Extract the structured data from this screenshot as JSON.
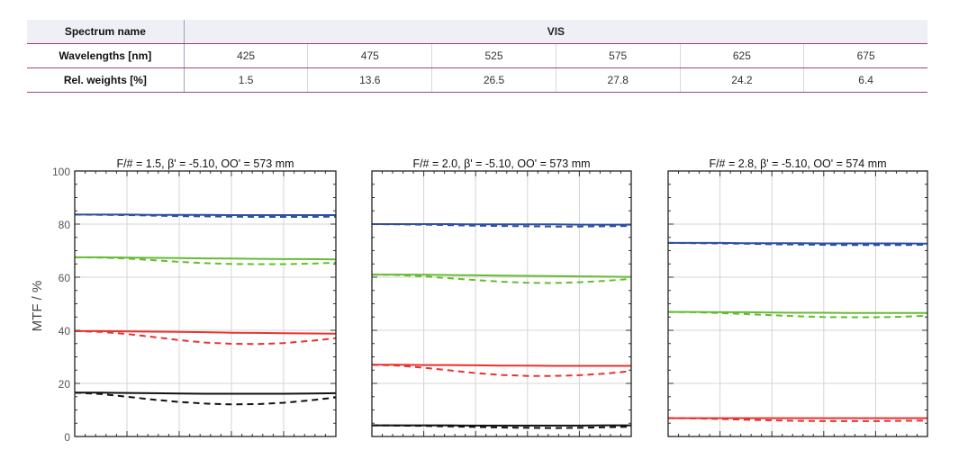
{
  "table": {
    "spectrum_label": "Spectrum name",
    "spectrum_value": "VIS",
    "wavelength_label": "Wavelengths [nm]",
    "weights_label": "Rel. weights [%]",
    "wavelengths": [
      "425",
      "475",
      "525",
      "575",
      "625",
      "675"
    ],
    "weights": [
      "1.5",
      "13.6",
      "26.5",
      "27.8",
      "24.2",
      "6.4"
    ]
  },
  "colors": {
    "blue": "#2e4fa3",
    "green": "#66bb33",
    "red": "#e8322e",
    "black": "#111111",
    "grid": "#d4d4d4",
    "table_rule": "#a0457d"
  },
  "chart_data": [
    {
      "type": "line",
      "title": "F/# = 1.5, β' = -5.10, OO' = 573 mm",
      "ylabel": "MTF / %",
      "ylim": [
        0,
        100
      ],
      "yticks": [
        "100",
        "80",
        "60",
        "40",
        "20",
        "0"
      ],
      "x": [
        0,
        0.1,
        0.2,
        0.3,
        0.4,
        0.5,
        0.6,
        0.7,
        0.8,
        0.9,
        1.0
      ],
      "series": [
        {
          "color": "blue",
          "style": "solid",
          "values": [
            83.6,
            83.6,
            83.6,
            83.5,
            83.5,
            83.5,
            83.4,
            83.4,
            83.4,
            83.4,
            83.4
          ]
        },
        {
          "color": "blue",
          "style": "dashed",
          "values": [
            83.6,
            83.5,
            83.4,
            83.2,
            83.0,
            82.9,
            82.8,
            82.7,
            82.7,
            82.7,
            82.8
          ]
        },
        {
          "color": "green",
          "style": "solid",
          "values": [
            67.5,
            67.5,
            67.4,
            67.3,
            67.2,
            67.1,
            67.0,
            66.9,
            66.8,
            66.8,
            66.7
          ]
        },
        {
          "color": "green",
          "style": "dashed",
          "values": [
            67.5,
            67.4,
            67.0,
            66.4,
            65.8,
            65.3,
            65.0,
            64.9,
            64.9,
            65.1,
            65.5
          ]
        },
        {
          "color": "red",
          "style": "solid",
          "values": [
            39.7,
            39.7,
            39.6,
            39.5,
            39.4,
            39.3,
            39.1,
            39.0,
            38.9,
            38.8,
            38.7
          ]
        },
        {
          "color": "red",
          "style": "dashed",
          "values": [
            39.7,
            39.4,
            38.6,
            37.5,
            36.3,
            35.4,
            34.9,
            34.8,
            35.2,
            36.0,
            37.0
          ]
        },
        {
          "color": "black",
          "style": "solid",
          "values": [
            16.5,
            16.5,
            16.4,
            16.3,
            16.2,
            16.1,
            16.1,
            16.1,
            16.1,
            16.2,
            16.3
          ]
        },
        {
          "color": "black",
          "style": "dashed",
          "values": [
            16.5,
            16.0,
            15.0,
            13.9,
            13.0,
            12.4,
            12.1,
            12.2,
            12.7,
            13.6,
            14.7
          ]
        }
      ]
    },
    {
      "type": "line",
      "title": "F/# = 2.0, β' = -5.10, OO' = 573 mm",
      "ylim": [
        0,
        100
      ],
      "x": [
        0,
        0.1,
        0.2,
        0.3,
        0.4,
        0.5,
        0.6,
        0.7,
        0.8,
        0.9,
        1.0
      ],
      "series": [
        {
          "color": "blue",
          "style": "solid",
          "values": [
            80.0,
            80.0,
            80.0,
            80.0,
            79.9,
            79.9,
            79.9,
            79.9,
            79.8,
            79.8,
            79.8
          ]
        },
        {
          "color": "blue",
          "style": "dashed",
          "values": [
            80.0,
            79.9,
            79.8,
            79.6,
            79.4,
            79.3,
            79.2,
            79.1,
            79.1,
            79.2,
            79.3
          ]
        },
        {
          "color": "green",
          "style": "solid",
          "values": [
            61.0,
            61.0,
            60.9,
            60.8,
            60.7,
            60.6,
            60.5,
            60.4,
            60.3,
            60.2,
            60.1
          ]
        },
        {
          "color": "green",
          "style": "dashed",
          "values": [
            61.0,
            60.8,
            60.3,
            59.6,
            58.9,
            58.3,
            57.9,
            57.8,
            58.1,
            58.6,
            59.4
          ]
        },
        {
          "color": "red",
          "style": "solid",
          "values": [
            27.0,
            27.0,
            26.9,
            26.9,
            26.8,
            26.7,
            26.7,
            26.6,
            26.6,
            26.6,
            26.6
          ]
        },
        {
          "color": "red",
          "style": "dashed",
          "values": [
            27.0,
            26.7,
            25.9,
            24.9,
            23.9,
            23.2,
            22.8,
            22.8,
            23.1,
            23.7,
            24.6
          ]
        },
        {
          "color": "black",
          "style": "solid",
          "values": [
            4.2,
            4.2,
            4.2,
            4.2,
            4.1,
            4.1,
            4.1,
            4.1,
            4.1,
            4.2,
            4.2
          ]
        },
        {
          "color": "black",
          "style": "dashed",
          "values": [
            4.2,
            4.1,
            4.0,
            3.8,
            3.6,
            3.4,
            3.3,
            3.2,
            3.3,
            3.5,
            3.7
          ]
        }
      ]
    },
    {
      "type": "line",
      "title": "F/# = 2.8, β' = -5.10, OO' = 574 mm",
      "ylim": [
        0,
        100
      ],
      "x": [
        0,
        0.1,
        0.2,
        0.3,
        0.4,
        0.5,
        0.6,
        0.7,
        0.8,
        0.9,
        1.0
      ],
      "series": [
        {
          "color": "blue",
          "style": "solid",
          "values": [
            72.9,
            72.9,
            72.9,
            72.8,
            72.8,
            72.8,
            72.7,
            72.7,
            72.7,
            72.7,
            72.6
          ]
        },
        {
          "color": "blue",
          "style": "dashed",
          "values": [
            72.9,
            72.8,
            72.7,
            72.6,
            72.4,
            72.3,
            72.2,
            72.1,
            72.1,
            72.1,
            72.2
          ]
        },
        {
          "color": "green",
          "style": "solid",
          "values": [
            46.9,
            46.9,
            46.8,
            46.8,
            46.7,
            46.6,
            46.6,
            46.5,
            46.5,
            46.5,
            46.5
          ]
        },
        {
          "color": "green",
          "style": "dashed",
          "values": [
            46.9,
            46.8,
            46.5,
            46.1,
            45.7,
            45.3,
            45.0,
            44.9,
            44.9,
            45.1,
            45.5
          ]
        },
        {
          "color": "red",
          "style": "solid",
          "values": [
            6.9,
            6.9,
            6.9,
            6.9,
            6.9,
            6.9,
            6.9,
            6.9,
            6.9,
            6.9,
            6.9
          ]
        },
        {
          "color": "red",
          "style": "dashed",
          "values": [
            6.9,
            6.8,
            6.6,
            6.3,
            6.1,
            5.9,
            5.8,
            5.8,
            5.8,
            5.9,
            6.0
          ]
        }
      ]
    }
  ]
}
